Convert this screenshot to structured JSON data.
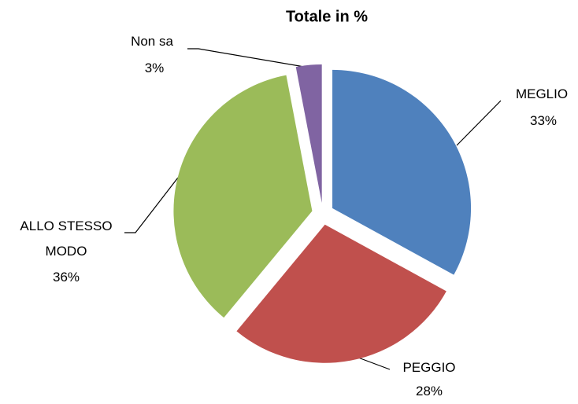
{
  "chart_data": {
    "type": "pie",
    "title": "Totale in %",
    "categories": [
      "MEGLIO",
      "PEGGIO",
      "ALLO STESSO MODO",
      "Non sa"
    ],
    "values": [
      33,
      28,
      36,
      3
    ],
    "value_labels": [
      "33%",
      "28%",
      "36%",
      "3%"
    ],
    "colors": [
      "#4f81bd",
      "#c0504d",
      "#9bbb59",
      "#8064a2"
    ]
  }
}
